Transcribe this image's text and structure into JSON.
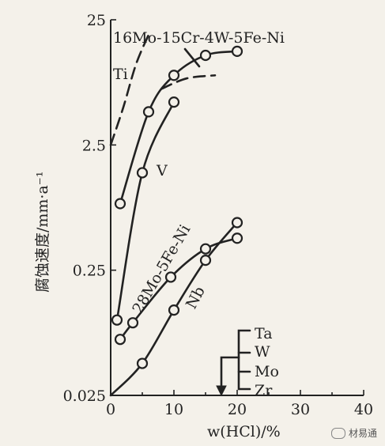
{
  "chart_data": {
    "type": "line",
    "title": "",
    "xlabel": "w(HCl)/%",
    "ylabel": "腐蚀速度/mm·a⁻¹",
    "x_ticks": [
      "0",
      "10",
      "20",
      "30",
      "40"
    ],
    "xlim": [
      0,
      40
    ],
    "y_ticks": [
      "0.025",
      "0.25",
      "2.5",
      "25"
    ],
    "ylim": [
      0.025,
      25
    ],
    "y_scale": "log",
    "series": [
      {
        "name": "16Mo-15Cr-4W-5Fe-Ni",
        "x": [
          1.5,
          6,
          10,
          15,
          20
        ],
        "y": [
          0.85,
          4.6,
          9.0,
          13.0,
          14.0
        ],
        "style": "solid-markers"
      },
      {
        "name": "Ti",
        "x": [
          0,
          2,
          4,
          6
        ],
        "y": [
          2.5,
          5.0,
          11.0,
          19.0
        ],
        "style": "dashed"
      },
      {
        "name": "",
        "x": [
          8,
          12,
          16.5
        ],
        "y": [
          7.0,
          8.5,
          9.0
        ],
        "style": "dashed"
      },
      {
        "name": "V",
        "x": [
          1,
          5,
          10
        ],
        "y": [
          0.1,
          1.5,
          5.5
        ],
        "style": "solid-markers"
      },
      {
        "name": "28Mo-5Fe-Ni",
        "x": [
          1.5,
          3.5,
          9.5,
          15,
          20
        ],
        "y": [
          0.07,
          0.095,
          0.22,
          0.37,
          0.45
        ],
        "style": "solid-markers"
      },
      {
        "name": "Nb",
        "x": [
          0,
          5,
          10,
          15,
          20
        ],
        "y": [
          0.025,
          0.045,
          0.12,
          0.3,
          0.6
        ],
        "style": "solid-markers"
      }
    ],
    "annotations": [
      "Ta",
      "W",
      "Mo",
      "Zr"
    ],
    "grid": false,
    "legend": "none"
  },
  "watermark": {
    "text": "材易通"
  }
}
